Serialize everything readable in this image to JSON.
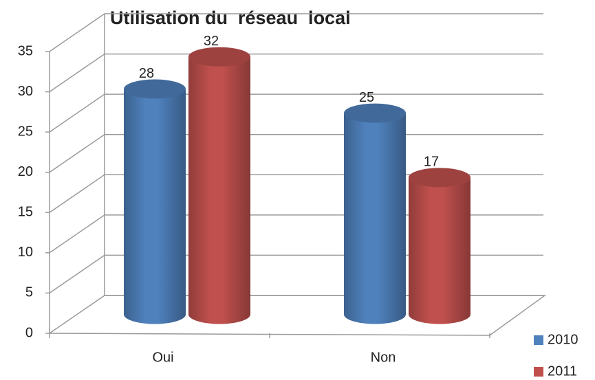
{
  "chart_data": {
    "type": "bar3d",
    "title": "Utilisation du  réseau  local",
    "categories": [
      "Oui",
      "Non"
    ],
    "series": [
      {
        "name": "2010",
        "color": "#4f81bd",
        "values": [
          28,
          25
        ]
      },
      {
        "name": "2011",
        "color": "#c0504d",
        "values": [
          32,
          17
        ]
      }
    ],
    "ylim": [
      0,
      35
    ],
    "yticks": [
      0,
      5,
      10,
      15,
      20,
      25,
      30,
      35
    ],
    "grid": true,
    "legend": "right"
  }
}
